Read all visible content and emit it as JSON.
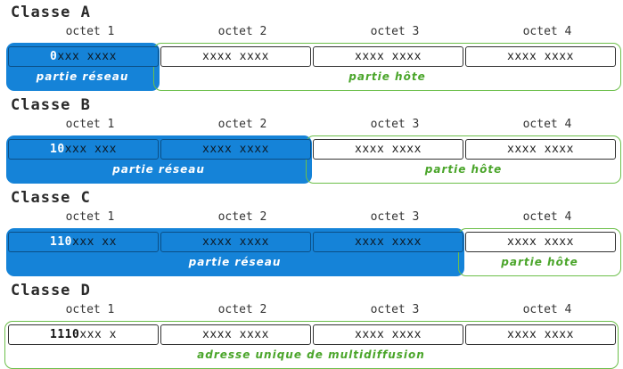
{
  "octet_labels": [
    "octet 1",
    "octet 2",
    "octet 3",
    "octet 4"
  ],
  "classes": [
    {
      "title": "Classe A",
      "octets": [
        {
          "bits": "0",
          "rest": "xxx xxxx"
        },
        {
          "bits": "",
          "rest": "xxxx xxxx"
        },
        {
          "bits": "",
          "rest": "xxxx xxxx"
        },
        {
          "bits": "",
          "rest": "xxxx xxxx"
        }
      ],
      "network_octets": 1,
      "network_label": "partie réseau",
      "host_label": "partie hôte"
    },
    {
      "title": "Classe B",
      "octets": [
        {
          "bits": "10",
          "rest": "xxx xxx"
        },
        {
          "bits": "",
          "rest": "xxxx xxxx"
        },
        {
          "bits": "",
          "rest": "xxxx xxxx"
        },
        {
          "bits": "",
          "rest": "xxxx xxxx"
        }
      ],
      "network_octets": 2,
      "network_label": "partie réseau",
      "host_label": "partie hôte"
    },
    {
      "title": "Classe C",
      "octets": [
        {
          "bits": "110",
          "rest": "xxx xx"
        },
        {
          "bits": "",
          "rest": "xxxx xxxx"
        },
        {
          "bits": "",
          "rest": "xxxx xxxx"
        },
        {
          "bits": "",
          "rest": "xxxx xxxx"
        }
      ],
      "network_octets": 3,
      "network_label": "partie réseau",
      "host_label": "partie hôte"
    },
    {
      "title": "Classe D",
      "octets": [
        {
          "bits": "1110",
          "rest": "xxx x"
        },
        {
          "bits": "",
          "rest": "xxxx xxxx"
        },
        {
          "bits": "",
          "rest": "xxxx xxxx"
        },
        {
          "bits": "",
          "rest": "xxxx xxxx"
        }
      ],
      "network_octets": 0,
      "network_label": "",
      "host_label": "adresse unique de multidiffusion"
    }
  ],
  "colors": {
    "network": "#1583d8",
    "host_border": "#6cbf4a",
    "host_text": "#4aa52a"
  }
}
